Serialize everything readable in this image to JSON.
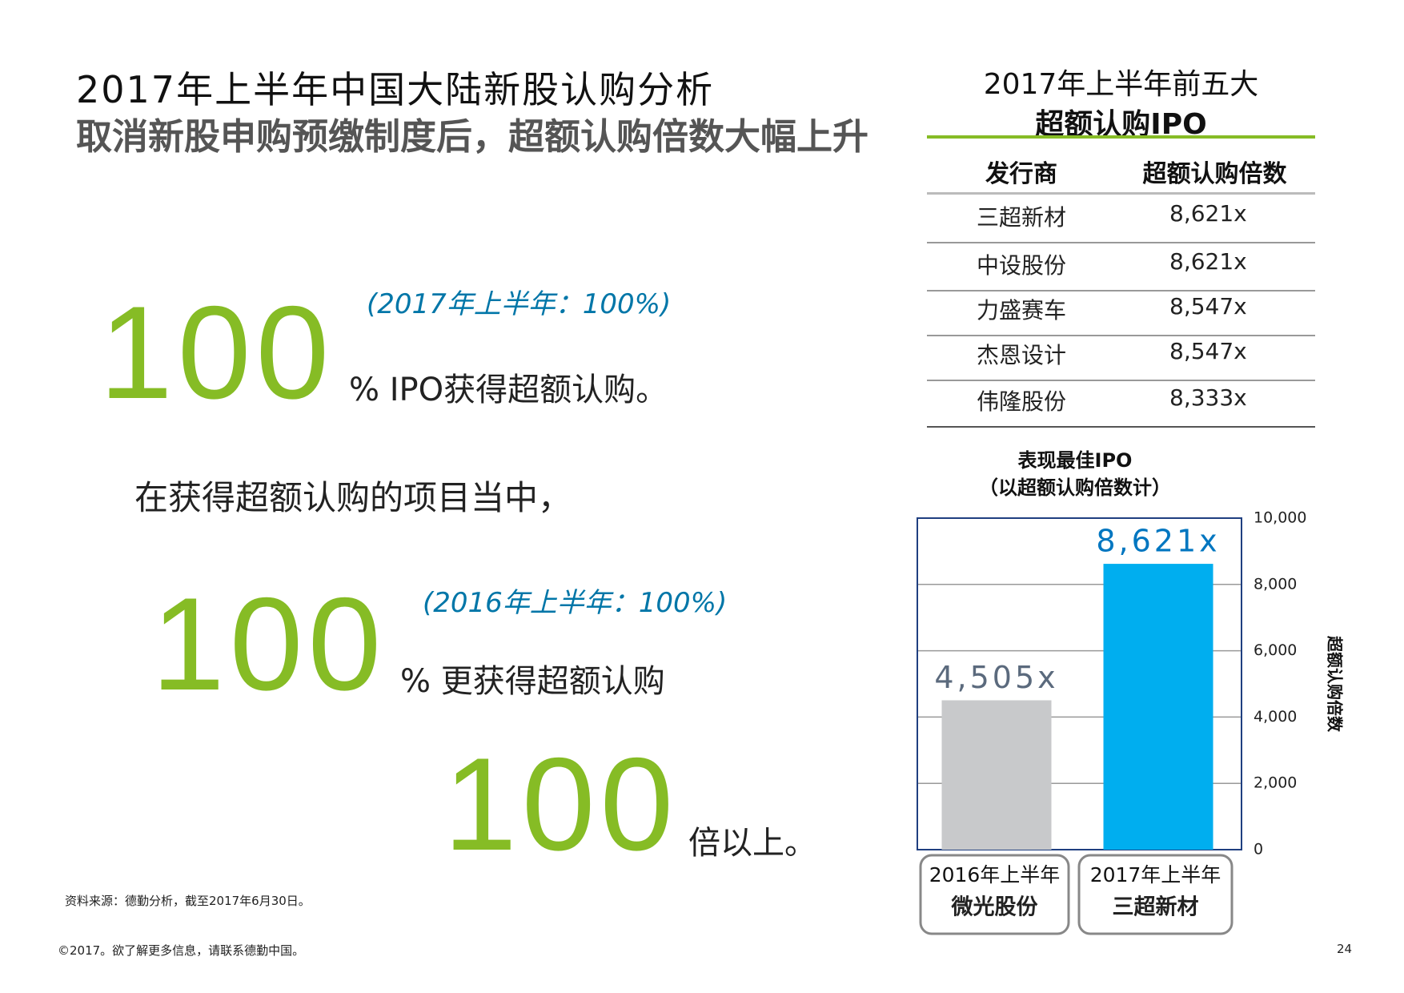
{
  "header": {
    "title": "2017年上半年中国大陆新股认购分析",
    "subtitle": "取消新股申购预缴制度后，超额认购倍数大幅上升"
  },
  "stats": [
    {
      "value": "100",
      "suffix": "% IPO获得超额认购。",
      "note": "(2017年上半年：100%)"
    },
    {
      "value": "100",
      "suffix": "% 更获得超额认购",
      "note": "(2016年上半年：100%)"
    },
    {
      "value": "100",
      "suffix": "倍以上。"
    }
  ],
  "middle_text": "在获得超额认购的项目当中，",
  "table": {
    "title": [
      "2017年上半年前五大",
      "超额认购IPO"
    ],
    "columns": [
      "发行商",
      "超额认购倍数"
    ],
    "rows": [
      [
        "三超新材",
        "8,621x"
      ],
      [
        "中设股份",
        "8,621x"
      ],
      [
        "力盛赛车",
        "8,547x"
      ],
      [
        "杰恩设计",
        "8,547x"
      ],
      [
        "伟隆股份",
        "8,333x"
      ]
    ]
  },
  "chart_data": {
    "type": "bar",
    "title": "表现最佳IPO",
    "subtitle": "（以超额认购倍数计）",
    "y_label": "超额认购倍数",
    "categories": [
      "2016年上半年",
      "2017年上半年"
    ],
    "category_names": [
      "微光股份",
      "三超新材"
    ],
    "values": [
      4505,
      8621
    ],
    "value_labels": [
      "4,505x",
      "8,621x"
    ],
    "colors": [
      "#c8c9cb",
      "#00aeef"
    ],
    "value_label_colors": [
      "#5b6a7d",
      "#0076c0"
    ],
    "ylim": [
      0,
      10000
    ],
    "yticks": [
      0,
      {
        "value": 2000,
        "label": "2,000"
      },
      {
        "value": 4000,
        "label": "4,000"
      },
      {
        "value": 6000,
        "label": "6,000"
      },
      {
        "value": 8000,
        "label": "8,000"
      },
      {
        "value": 10000,
        "label": "10,000"
      }
    ],
    "grid": true
  },
  "source": "资料来源：德勤分析，截至2017年6月30日。",
  "footer": {
    "text": "©2017。欲了解更多信息，请联系德勤中国。",
    "page": "24"
  }
}
